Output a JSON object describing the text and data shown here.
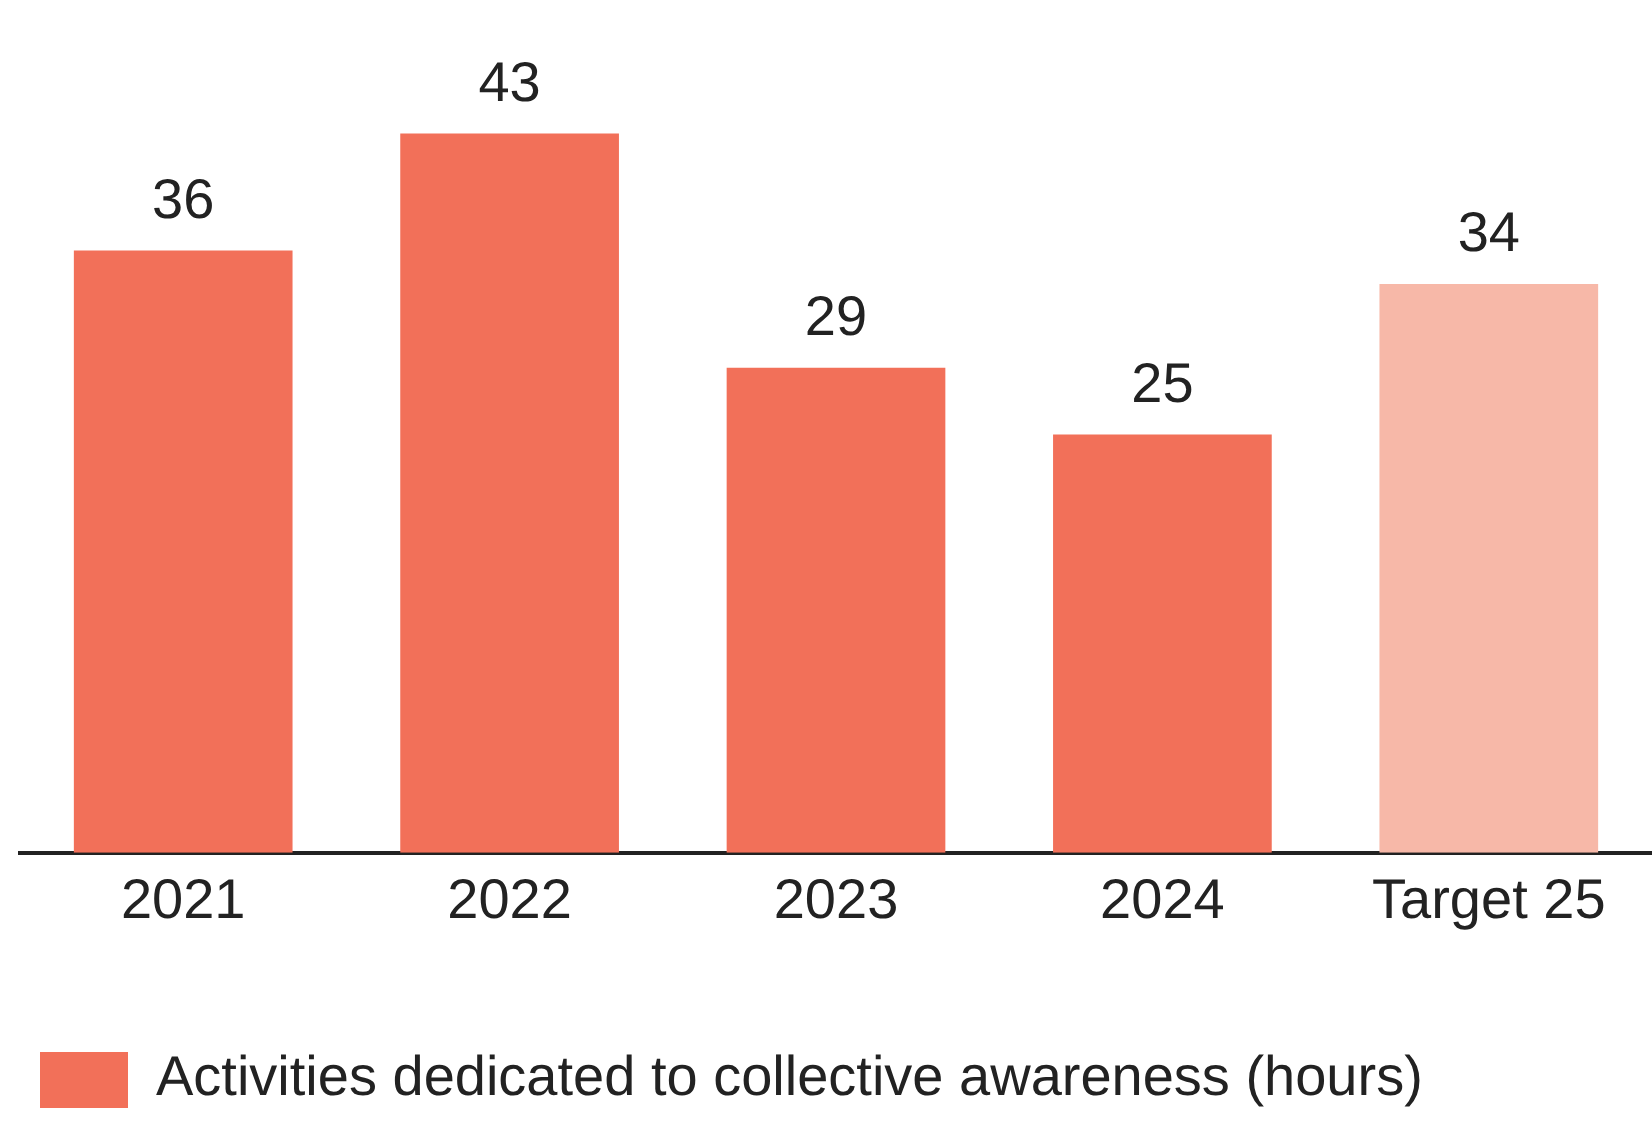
{
  "chart_data": {
    "type": "bar",
    "categories": [
      "2021",
      "2022",
      "2023",
      "2024",
      "Target 25"
    ],
    "series": [
      {
        "name": "Activities dedicated to collective awareness (hours)",
        "values": [
          36,
          43,
          29,
          25,
          34
        ],
        "colors": [
          "#f27059",
          "#f27059",
          "#f27059",
          "#f27059",
          "#f7b8a8"
        ]
      }
    ],
    "data_labels": true,
    "legend": "bottom left",
    "grid": false,
    "tick_labels": "x"
  }
}
